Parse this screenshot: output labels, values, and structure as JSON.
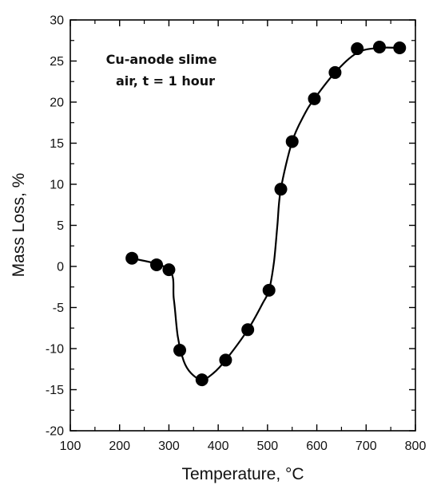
{
  "chart_data": {
    "type": "line",
    "title": "",
    "xlabel": "Temperature, °C",
    "ylabel": "Mass Loss, %",
    "xlim": [
      100,
      800
    ],
    "ylim": [
      -20,
      30
    ],
    "xticks": [
      100,
      200,
      300,
      400,
      500,
      600,
      700,
      800
    ],
    "yticks": [
      -20,
      -15,
      -10,
      -5,
      0,
      5,
      10,
      15,
      20,
      25,
      30
    ],
    "grid": false,
    "legend": "none",
    "annotation": {
      "line1": "Cu-anode slime",
      "line2": "air, t = 1 hour"
    },
    "series": [
      {
        "points": [
          {
            "x": 225,
            "y": 1.0
          },
          {
            "x": 275,
            "y": 0.2
          },
          {
            "x": 300,
            "y": -0.4
          },
          {
            "x": 322,
            "y": -10.2
          },
          {
            "x": 367,
            "y": -13.8
          },
          {
            "x": 415,
            "y": -11.4
          },
          {
            "x": 460,
            "y": -7.7
          },
          {
            "x": 503,
            "y": -2.9
          },
          {
            "x": 527,
            "y": 9.4
          },
          {
            "x": 550,
            "y": 15.2
          },
          {
            "x": 595,
            "y": 20.4
          },
          {
            "x": 637,
            "y": 23.6
          },
          {
            "x": 682,
            "y": 26.5
          },
          {
            "x": 727,
            "y": 26.7
          },
          {
            "x": 768,
            "y": 26.6
          }
        ],
        "curve": [
          [
            225,
            1.0
          ],
          [
            300,
            -0.4
          ],
          [
            310,
            -4
          ],
          [
            318,
            -8.5
          ],
          [
            330,
            -11.5
          ],
          [
            345,
            -13.0
          ],
          [
            367,
            -13.8
          ],
          [
            390,
            -13.0
          ],
          [
            415,
            -11.4
          ],
          [
            460,
            -7.7
          ],
          [
            490,
            -4.5
          ],
          [
            503,
            -2.9
          ],
          [
            513,
            0.5
          ],
          [
            520,
            5.0
          ],
          [
            527,
            9.4
          ],
          [
            550,
            15.2
          ],
          [
            575,
            18.5
          ],
          [
            595,
            20.4
          ],
          [
            637,
            23.6
          ],
          [
            682,
            26.0
          ],
          [
            727,
            26.6
          ],
          [
            768,
            26.6
          ]
        ],
        "color": "#000000"
      }
    ]
  }
}
